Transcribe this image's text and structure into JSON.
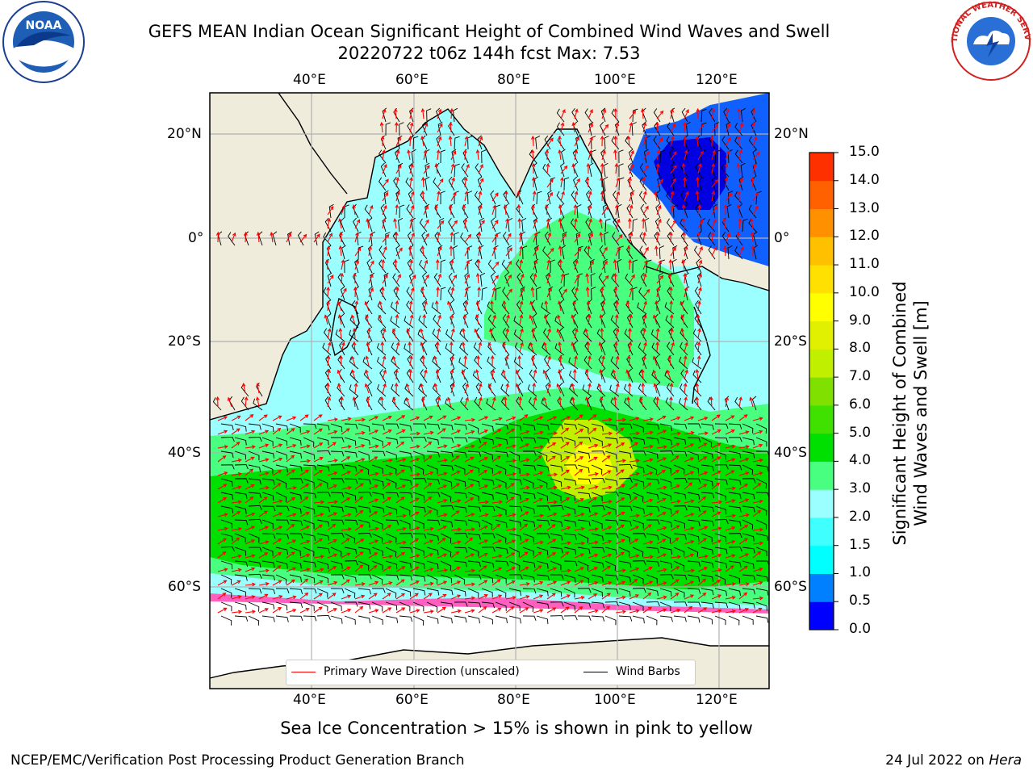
{
  "header": {
    "title_line1": "GEFS MEAN Indian Ocean Significant Height of Combined Wind Waves and Swell",
    "title_line2": "20220722 t06z 144h fcst   Max: 7.53"
  },
  "logos": {
    "noaa_text": "NOAA",
    "nws_text": "NATIONAL WEATHER SERVICE"
  },
  "map": {
    "lon_ticks_top": [
      "40°E",
      "60°E",
      "80°E",
      "100°E",
      "120°E"
    ],
    "lon_ticks_bottom": [
      "40°E",
      "60°E",
      "80°E",
      "100°E",
      "120°E"
    ],
    "lat_ticks_left": [
      "20°N",
      "0°",
      "20°S",
      "40°S",
      "60°S"
    ],
    "lat_ticks_right": [
      "20°N",
      "0°",
      "20°S",
      "40°S",
      "60°S"
    ],
    "land_color": "#efecdc",
    "ocean_fill_color": "#9cffff",
    "wave_arrow_color": "#ff0000",
    "wind_barb_color": "#000000"
  },
  "legend": {
    "wave_label": "Primary Wave Direction (unscaled)",
    "wind_label": "Wind Barbs"
  },
  "colorbar": {
    "title_line1": "Significant Height of Combined",
    "title_line2": "Wind Waves and Swell [m]",
    "labels": [
      "15.0",
      "14.0",
      "13.0",
      "12.0",
      "11.0",
      "10.0",
      "9.0",
      "8.0",
      "7.0",
      "6.0",
      "5.0",
      "4.0",
      "3.0",
      "2.0",
      "1.5",
      "1.0",
      "0.5",
      "0.0"
    ],
    "colors_bottom_to_top": [
      "#0000ff",
      "#0080ff",
      "#00ffff",
      "#40ffff",
      "#9cffff",
      "#48ff80",
      "#00e000",
      "#40e000",
      "#80e000",
      "#c0f000",
      "#e0f000",
      "#ffff00",
      "#ffe000",
      "#ffc000",
      "#ff9000",
      "#ff6000",
      "#ff3000"
    ]
  },
  "footnote": "Sea Ice Concentration > 15% is shown in pink to yellow",
  "footer": {
    "left": "NCEP/EMC/Verification Post Processing Product Generation Branch",
    "right_prefix": "24 Jul 2022 on ",
    "right_host": "Hera"
  }
}
